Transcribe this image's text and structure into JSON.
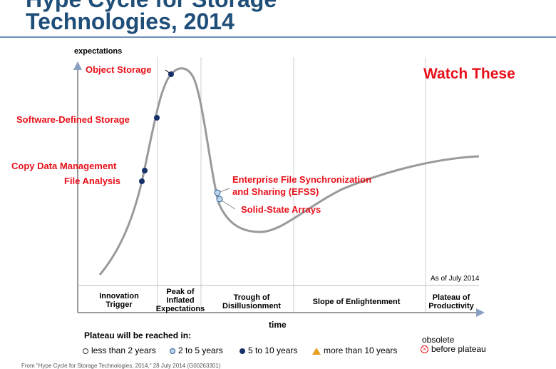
{
  "header": {
    "title_line1": "Hype Cycle for Storage",
    "title_line2": "Technologies, 2014"
  },
  "axes": {
    "y_label": "expectations",
    "x_label": "time"
  },
  "callout": "Watch These",
  "as_of": "As of July 2014",
  "phases": [
    {
      "label": "Innovation\nTrigger"
    },
    {
      "label": "Peak of\nInflated\nExpectations"
    },
    {
      "label": "Trough of\nDisillusionment"
    },
    {
      "label": "Slope of Enlightenment"
    },
    {
      "label": "Plateau of\nProductivity"
    }
  ],
  "technologies": [
    {
      "name": "Object Storage",
      "years": "5 to 10 years"
    },
    {
      "name": "Software-Defined Storage",
      "years": "5 to 10 years"
    },
    {
      "name": "Copy Data Management",
      "years": "5 to 10 years"
    },
    {
      "name": "File Analysis",
      "years": "5 to 10 years"
    },
    {
      "name": "Enterprise File Synchronization",
      "name_line2": "and Sharing (EFSS)",
      "years": "2 to 5 years"
    },
    {
      "name": "Solid-State Arrays",
      "years": "2 to 5 years"
    }
  ],
  "legend": {
    "title": "Plateau will be reached in:",
    "items": [
      {
        "label": "less than 2 years",
        "symbol": "open-circle"
      },
      {
        "label": "2 to 5 years",
        "symbol": "light-circle"
      },
      {
        "label": "5 to 10 years",
        "symbol": "dark-circle"
      },
      {
        "label": "more than 10 years",
        "symbol": "triangle"
      }
    ],
    "obsolete_line1": "obsolete",
    "obsolete_line2": "before plateau"
  },
  "footnote": "From \"Hype Cycle for Storage Technologies, 2014,\" 28 July 2014 (G00263301)",
  "colors": {
    "title": "#1f4e79",
    "label_red": "#e8101a",
    "curve": "#9a9a9a",
    "dot_dark": "#16306a",
    "dot_light": "#b9d6ee"
  }
}
